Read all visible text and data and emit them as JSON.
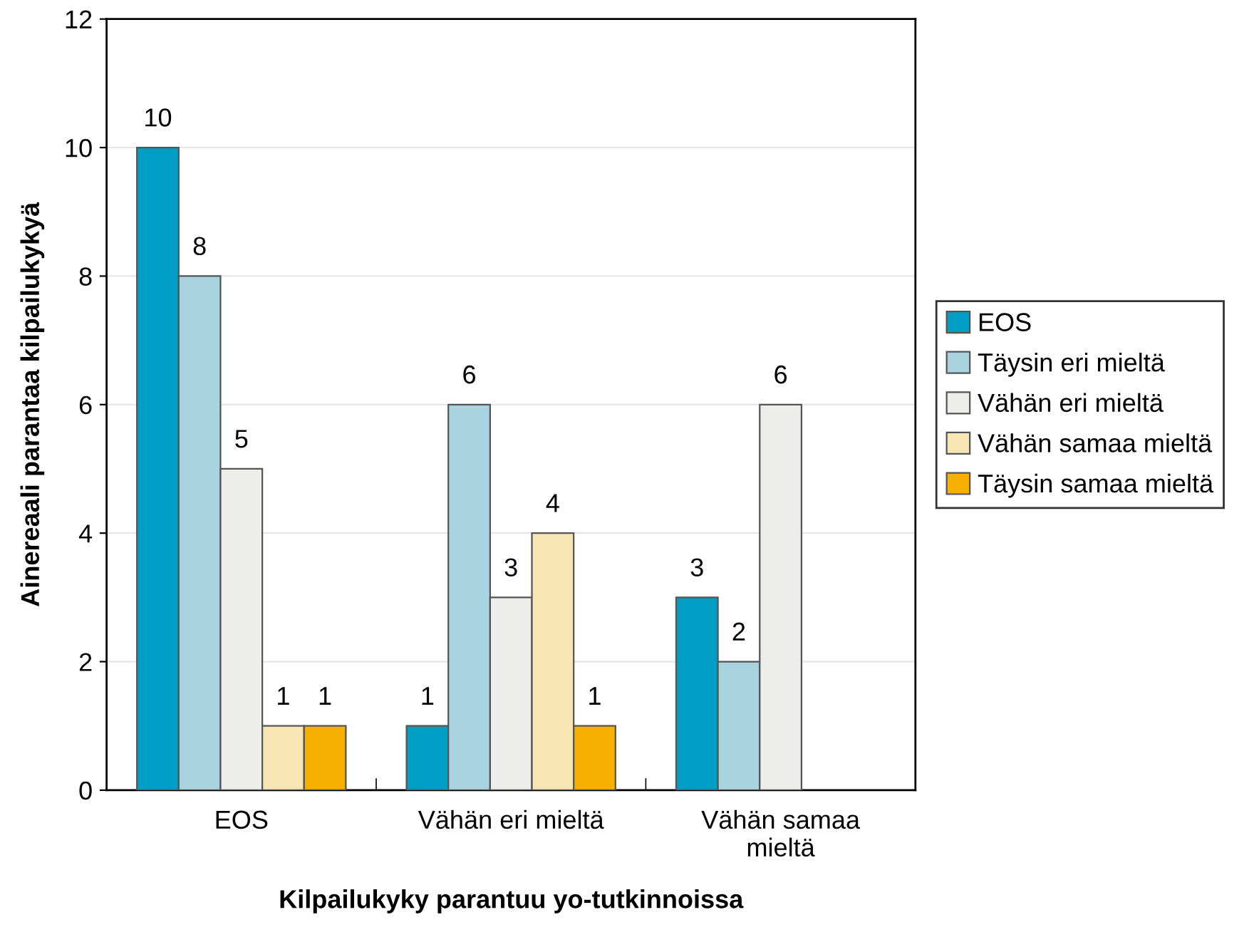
{
  "chart_data": {
    "type": "bar",
    "xlabel": "Kilpailukyky parantuu yo-tutkinnoissa",
    "ylabel": "Ainereaali parantaa kilpailukykyä",
    "categories": [
      "EOS",
      "Vähän eri mieltä",
      "Vähän samaa\nmieltä"
    ],
    "series": [
      {
        "name": "EOS",
        "color": "#009ec4",
        "values": [
          10,
          1,
          3
        ]
      },
      {
        "name": "Täysin eri mieltä",
        "color": "#aad3e0",
        "values": [
          8,
          6,
          2
        ]
      },
      {
        "name": "Vähän eri mieltä",
        "color": "#ededeb",
        "values": [
          5,
          3,
          6
        ]
      },
      {
        "name": "Vähän samaa mieltä",
        "color": "#f7e6b4",
        "values": [
          1,
          4,
          null
        ]
      },
      {
        "name": "Täysin samaa mieltä",
        "color": "#f5b000",
        "values": [
          1,
          1,
          null
        ]
      }
    ],
    "ylim": [
      0,
      12
    ],
    "yticks": [
      0,
      2,
      4,
      6,
      8,
      10,
      12
    ],
    "grid": "y",
    "legend": "right",
    "data_labels": true
  }
}
